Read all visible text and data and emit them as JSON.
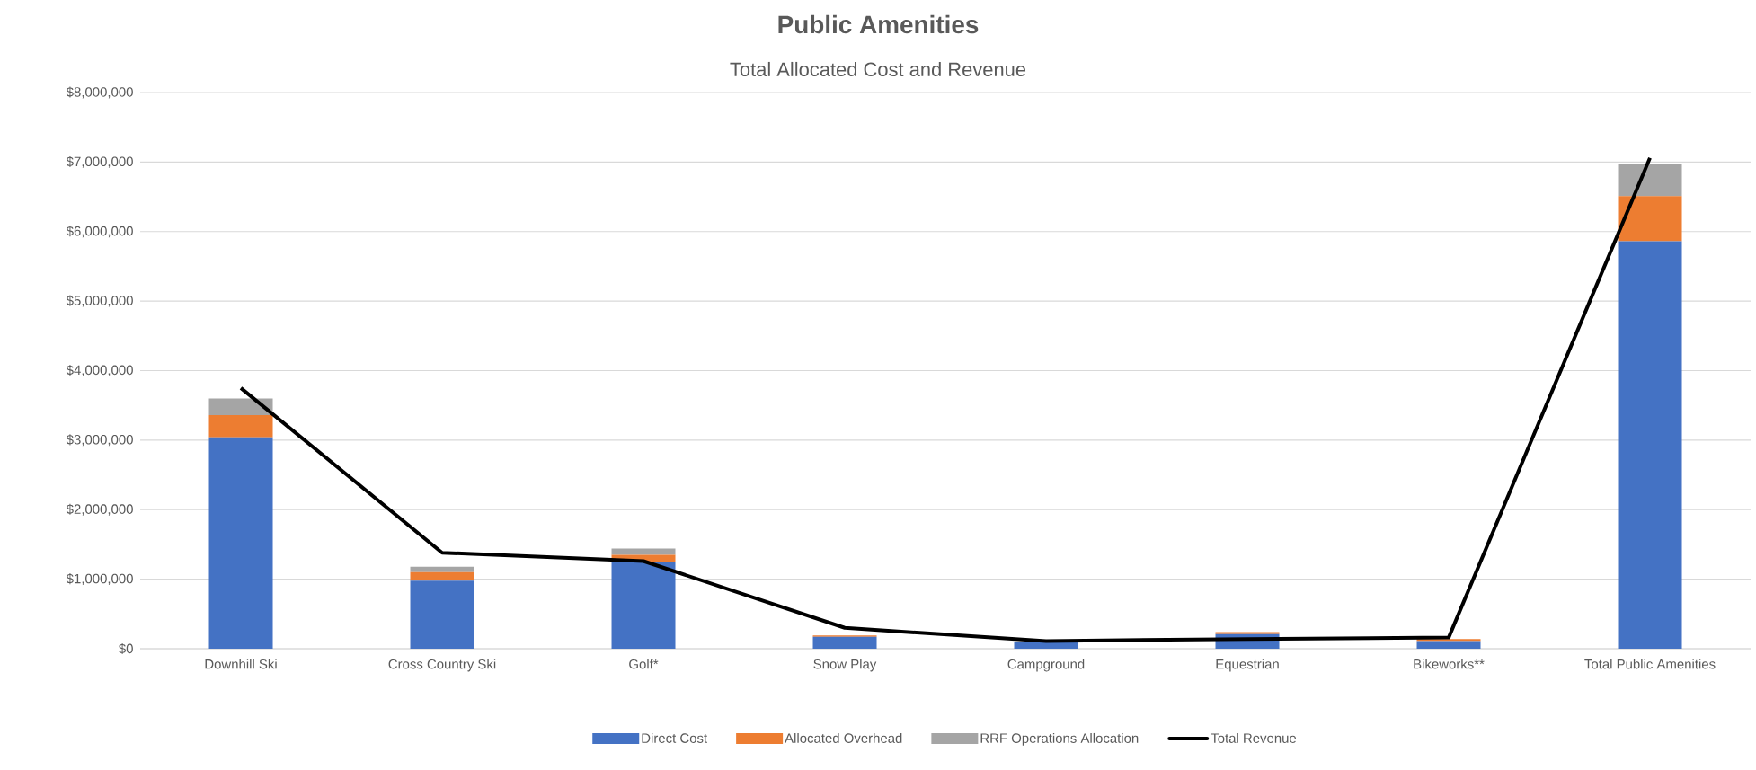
{
  "chart_data": {
    "type": "bar",
    "title": "Public Amenities",
    "subtitle": "Total Allocated Cost and Revenue",
    "categories": [
      "Downhill Ski",
      "Cross Country Ski",
      "Golf*",
      "Snow Play",
      "Campground",
      "Equestrian",
      "Bikeworks**",
      "Total Public Amenities"
    ],
    "series": [
      {
        "name": "Direct Cost",
        "color": "#4472c4",
        "values": [
          3040000,
          980000,
          1240000,
          170000,
          90000,
          210000,
          110000,
          5860000
        ]
      },
      {
        "name": "Allocated Overhead",
        "color": "#ed7d31",
        "values": [
          320000,
          120000,
          110000,
          20000,
          null,
          30000,
          30000,
          650000
        ]
      },
      {
        "name": "RRF Operations Allocation",
        "color": "#a5a5a5",
        "values": [
          240000,
          80000,
          90000,
          null,
          null,
          null,
          null,
          460000
        ]
      },
      {
        "name": "Total Revenue",
        "type": "line",
        "color": "#000000",
        "values": [
          3750000,
          1380000,
          1260000,
          300000,
          110000,
          140000,
          160000,
          7060000
        ]
      }
    ],
    "stacked": true,
    "ylim": [
      0,
      8000000
    ],
    "yticks": [
      {
        "value": 0,
        "label": "$0"
      },
      {
        "value": 1000000,
        "label": "$1,000,000"
      },
      {
        "value": 2000000,
        "label": "$2,000,000"
      },
      {
        "value": 3000000,
        "label": "$3,000,000"
      },
      {
        "value": 4000000,
        "label": "$4,000,000"
      },
      {
        "value": 5000000,
        "label": "$5,000,000"
      },
      {
        "value": 6000000,
        "label": "$6,000,000"
      },
      {
        "value": 7000000,
        "label": "$7,000,000"
      },
      {
        "value": 8000000,
        "label": "$8,000,000"
      }
    ],
    "grid": "y",
    "legend": "bottom",
    "marker": "none",
    "line_style": "solid"
  }
}
